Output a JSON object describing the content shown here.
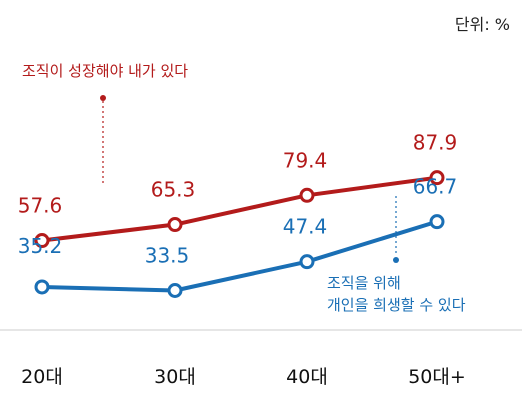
{
  "chart_data": {
    "type": "line",
    "unit_label": "단위: %",
    "categories": [
      "20대",
      "30대",
      "40대",
      "50대+"
    ],
    "series": [
      {
        "name": "조직이 성장해야 내가 있다",
        "color": "#b31b1b",
        "values": [
          57.6,
          65.3,
          79.4,
          87.9
        ],
        "value_labels": [
          "57.6",
          "65.3",
          "79.4",
          "87.9"
        ]
      },
      {
        "name": "조직을 위해 개인을 희생할 수 있다",
        "name_lines": [
          "조직을 위해",
          "개인을 희생할 수 있다"
        ],
        "color": "#1a6fb5",
        "values": [
          35.2,
          33.5,
          47.4,
          66.7
        ],
        "value_labels": [
          "35.2",
          "33.5",
          "47.4",
          "66.7"
        ]
      }
    ],
    "ylim": [
      25,
      100
    ],
    "grid": false,
    "legend": "inline annotations"
  }
}
